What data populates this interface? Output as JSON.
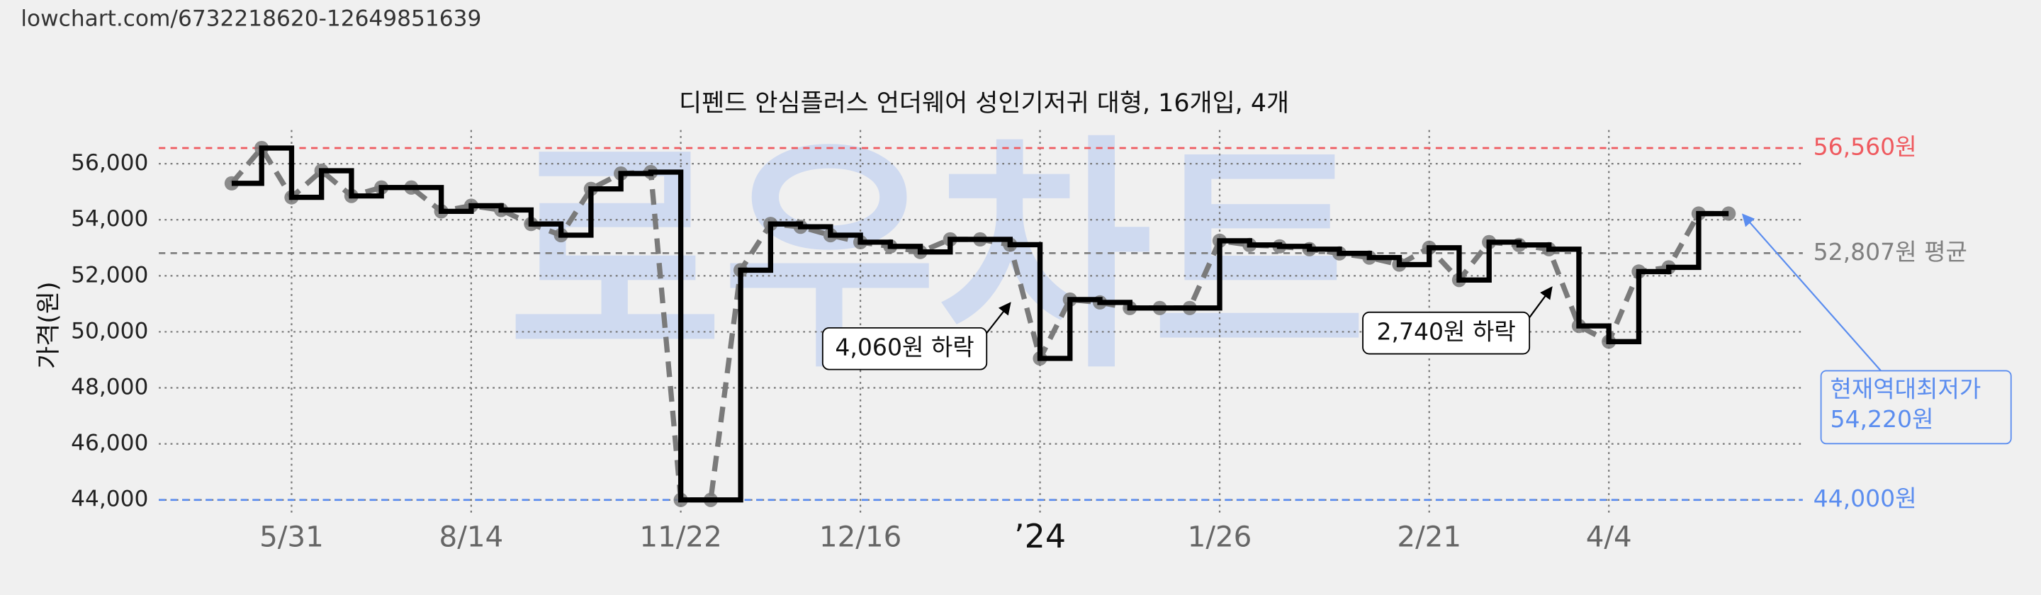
{
  "url": "lowchart.com/6732218620-12649851639",
  "watermark": "로우차트",
  "chart_data": {
    "type": "step",
    "title": "디펜드 안심플러스 언더웨어 성인기저귀 대형, 16개입, 4개",
    "y_label": "가격(원)",
    "categories": [
      null,
      null,
      "5/31",
      null,
      null,
      null,
      null,
      null,
      "8/14",
      null,
      null,
      null,
      null,
      null,
      null,
      "11/22",
      null,
      null,
      null,
      null,
      null,
      "12/16",
      null,
      null,
      null,
      null,
      null,
      "’24",
      null,
      null,
      null,
      null,
      null,
      "1/26",
      null,
      null,
      null,
      null,
      null,
      null,
      "2/21",
      null,
      null,
      null,
      null,
      null,
      "4/4",
      null,
      null,
      null,
      null
    ],
    "series": [
      {
        "color": "#000000",
        "point_color": "#7a7a7a",
        "values": [
          55300,
          56560,
          54800,
          55750,
          54850,
          55150,
          55150,
          54300,
          54500,
          54350,
          53850,
          53450,
          55100,
          55650,
          55700,
          44000,
          44000,
          52200,
          53850,
          53750,
          53450,
          53200,
          53050,
          52850,
          53300,
          53300,
          53110,
          49050,
          51150,
          51050,
          50850,
          50850,
          50850,
          53250,
          53100,
          53050,
          52950,
          52800,
          52650,
          52400,
          53000,
          51850,
          53200,
          53100,
          52950,
          50210,
          49650,
          52150,
          52300,
          54220,
          54220
        ]
      }
    ],
    "ylim": [
      43500,
      57200
    ],
    "yticks": [
      {
        "value": 44000,
        "label": "44,000"
      },
      {
        "value": 46000,
        "label": "46,000"
      },
      {
        "value": 48000,
        "label": "48,000"
      },
      {
        "value": 50000,
        "label": "50,000"
      },
      {
        "value": 52000,
        "label": "52,000"
      },
      {
        "value": 54000,
        "label": "54,000"
      },
      {
        "value": 56000,
        "label": "56,000"
      }
    ],
    "grid": true,
    "reference_lines": [
      {
        "value": 56560,
        "label": "56,560원",
        "color": "#ef5a5f"
      },
      {
        "value": 52807,
        "label": "52,807원 평균",
        "color": "#7f7f7f"
      },
      {
        "value": 44000,
        "label": "44,000원",
        "color": "#5b8def"
      }
    ],
    "annotations": [
      {
        "text": "4,060원 하락"
      },
      {
        "text": "2,740원 하락"
      },
      {
        "lines": [
          "현재역대최저가",
          "54,220원"
        ],
        "color": "#5b8def"
      }
    ]
  }
}
